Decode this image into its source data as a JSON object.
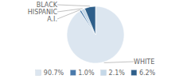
{
  "chart_data": {
    "type": "pie",
    "categories": [
      "WHITE",
      "A.I.",
      "HISPANIC",
      "BLACK"
    ],
    "values": [
      90.7,
      1.0,
      2.1,
      6.2
    ],
    "value_labels": [
      "90.7%",
      "1.0%",
      "2.1%",
      "6.2%"
    ],
    "colors": [
      "#dce6f0",
      "#4a7aab",
      "#c5d8e8",
      "#2e5f8a"
    ],
    "legend": "bottom"
  }
}
